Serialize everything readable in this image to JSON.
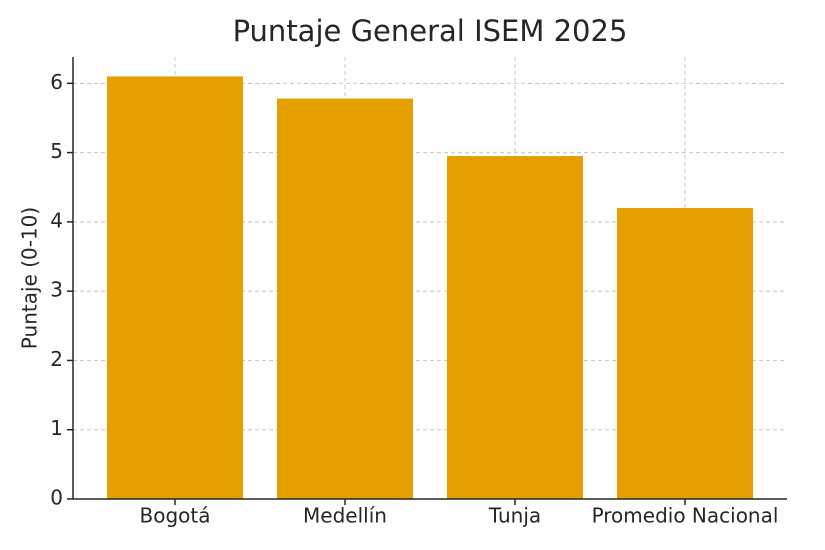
{
  "chart_data": {
    "type": "bar",
    "title": "Puntaje General ISEM 2025",
    "y_label": "Puntaje (0-10)",
    "categories": [
      "Bogotá",
      "Medellín",
      "Tunja",
      "Promedio Nacional"
    ],
    "values": [
      6.1,
      5.78,
      4.95,
      4.2
    ],
    "color": "#e5a000",
    "ylim": [
      0,
      6.38
    ],
    "yticks": [
      0,
      1,
      2,
      3,
      4,
      5,
      6
    ],
    "grid": true
  }
}
